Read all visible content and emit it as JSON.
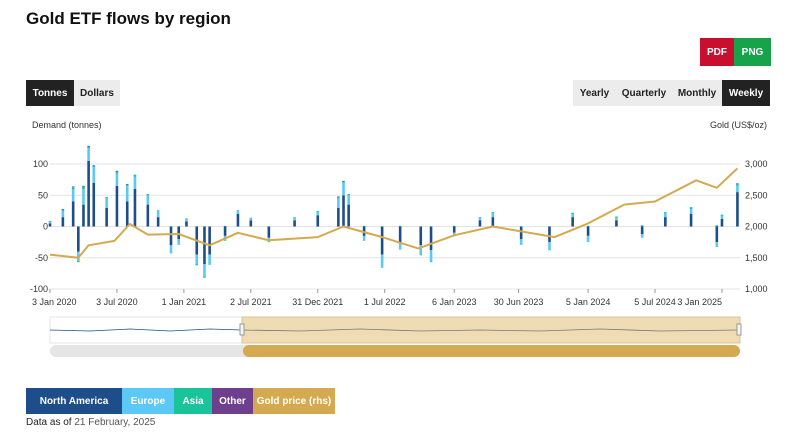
{
  "page": {
    "title": "Gold ETF flows by region"
  },
  "export": {
    "pdf": "PDF",
    "png": "PNG"
  },
  "units_toggle": {
    "tonnes": "Tonnes",
    "dollars": "Dollars",
    "selected": "Tonnes"
  },
  "period_toggle": {
    "yearly": "Yearly",
    "quarterly": "Quarterly",
    "monthly": "Monthly",
    "weekly": "Weekly",
    "selected": "Weekly"
  },
  "legend": {
    "north_america": "North America",
    "europe": "Europe",
    "asia": "Asia",
    "other": "Other",
    "gold_price": "Gold price (rhs)"
  },
  "footer": {
    "prefix": "Data as of",
    "date": "21 February, 2025"
  },
  "colors": {
    "north_america": "#1d4e89",
    "europe": "#5bc8f5",
    "asia": "#19c49a",
    "other": "#6e3f8f",
    "gold_price": "#d4a94f",
    "navigator_fill": "#efdcb4",
    "active": "#222222"
  },
  "chart_data": {
    "type": "bar+line",
    "ylabel": "Demand (tonnes)",
    "y2label": "Gold (US$/oz)",
    "ylim": [
      -100,
      100
    ],
    "y_ticks": [
      100,
      50,
      0,
      -50,
      -100
    ],
    "y2lim": [
      1000,
      3000
    ],
    "y2_ticks": [
      "3,000",
      "2,500",
      "2,000",
      "1,500",
      "1,000"
    ],
    "x_ticks": [
      "3 Jan 2020",
      "3 Jul 2020",
      "1 Jan 2021",
      "2 Jul 2021",
      "31 Dec 2021",
      "1 Jul 2022",
      "6 Jan 2023",
      "30 Jun 2023",
      "5 Jan 2024",
      "5 Jul 2024",
      "3 Jan 2025"
    ],
    "grid": true,
    "weekly_flows": [
      {
        "week": "2020-01-03",
        "north_america": 5,
        "europe": 3,
        "asia": 1,
        "other": 0
      },
      {
        "week": "2020-02-07",
        "north_america": 15,
        "europe": 10,
        "asia": 2,
        "other": 1
      },
      {
        "week": "2020-03-06",
        "north_america": 40,
        "europe": 20,
        "asia": 3,
        "other": 1
      },
      {
        "week": "2020-03-20",
        "north_america": -40,
        "europe": -15,
        "asia": -2,
        "other": 0
      },
      {
        "week": "2020-04-03",
        "north_america": 35,
        "europe": 25,
        "asia": 4,
        "other": 1
      },
      {
        "week": "2020-04-17",
        "north_america": 105,
        "europe": 20,
        "asia": 3,
        "other": 1
      },
      {
        "week": "2020-05-01",
        "north_america": 70,
        "europe": 25,
        "asia": 2,
        "other": 1
      },
      {
        "week": "2020-06-05",
        "north_america": 30,
        "europe": 15,
        "asia": 2,
        "other": 0
      },
      {
        "week": "2020-07-03",
        "north_america": 65,
        "europe": 20,
        "asia": 3,
        "other": 1
      },
      {
        "week": "2020-07-31",
        "north_america": 40,
        "europe": 25,
        "asia": 2,
        "other": 1
      },
      {
        "week": "2020-08-21",
        "north_america": 60,
        "europe": 20,
        "asia": 3,
        "other": 0
      },
      {
        "week": "2020-09-25",
        "north_america": 35,
        "europe": 15,
        "asia": 2,
        "other": 0
      },
      {
        "week": "2020-10-23",
        "north_america": 15,
        "europe": 10,
        "asia": 1,
        "other": 0
      },
      {
        "week": "2020-11-27",
        "north_america": -30,
        "europe": -12,
        "asia": -1,
        "other": 0
      },
      {
        "week": "2020-12-18",
        "north_america": -20,
        "europe": -8,
        "asia": -1,
        "other": 0
      },
      {
        "week": "2021-01-08",
        "north_america": 8,
        "europe": 4,
        "asia": 1,
        "other": 0
      },
      {
        "week": "2021-02-05",
        "north_america": -45,
        "europe": -15,
        "asia": -2,
        "other": 0
      },
      {
        "week": "2021-02-26",
        "north_america": -60,
        "europe": -20,
        "asia": -2,
        "other": 0
      },
      {
        "week": "2021-03-12",
        "north_america": -45,
        "europe": -15,
        "asia": -1,
        "other": 0
      },
      {
        "week": "2021-04-23",
        "north_america": -15,
        "europe": -8,
        "asia": 1,
        "other": 0
      },
      {
        "week": "2021-05-28",
        "north_america": 20,
        "europe": 5,
        "asia": 1,
        "other": 0
      },
      {
        "week": "2021-07-02",
        "north_america": 10,
        "europe": 3,
        "asia": 1,
        "other": 0
      },
      {
        "week": "2021-08-20",
        "north_america": -18,
        "europe": -6,
        "asia": -1,
        "other": 0
      },
      {
        "week": "2021-10-29",
        "north_america": 10,
        "europe": 4,
        "asia": 1,
        "other": 0
      },
      {
        "week": "2021-12-31",
        "north_america": 18,
        "europe": 6,
        "asia": 1,
        "other": 0
      },
      {
        "week": "2022-02-25",
        "north_america": 30,
        "europe": 15,
        "asia": 2,
        "other": 1
      },
      {
        "week": "2022-03-11",
        "north_america": 50,
        "europe": 20,
        "asia": 2,
        "other": 1
      },
      {
        "week": "2022-03-25",
        "north_america": 35,
        "europe": 15,
        "asia": 2,
        "other": 0
      },
      {
        "week": "2022-05-06",
        "north_america": -15,
        "europe": -8,
        "asia": 1,
        "other": 0
      },
      {
        "week": "2022-06-24",
        "north_america": -45,
        "europe": -20,
        "asia": -1,
        "other": 0
      },
      {
        "week": "2022-08-12",
        "north_america": -25,
        "europe": -12,
        "asia": 1,
        "other": 0
      },
      {
        "week": "2022-10-07",
        "north_america": -30,
        "europe": -15,
        "asia": -1,
        "other": 0
      },
      {
        "week": "2022-11-04",
        "north_america": -38,
        "europe": -18,
        "asia": -1,
        "other": 0
      },
      {
        "week": "2023-01-06",
        "north_america": -10,
        "europe": -5,
        "asia": 1,
        "other": 0
      },
      {
        "week": "2023-03-17",
        "north_america": 10,
        "europe": 4,
        "asia": 1,
        "other": 0
      },
      {
        "week": "2023-04-21",
        "north_america": 15,
        "europe": 6,
        "asia": 2,
        "other": 0
      },
      {
        "week": "2023-07-07",
        "north_america": -20,
        "europe": -8,
        "asia": -1,
        "other": 0
      },
      {
        "week": "2023-09-22",
        "north_america": -25,
        "europe": -12,
        "asia": -1,
        "other": 0
      },
      {
        "week": "2023-11-24",
        "north_america": 15,
        "europe": 5,
        "asia": 2,
        "other": 0
      },
      {
        "week": "2024-01-05",
        "north_america": -15,
        "europe": -10,
        "asia": 1,
        "other": 0
      },
      {
        "week": "2024-03-22",
        "north_america": 10,
        "europe": 4,
        "asia": 2,
        "other": 0
      },
      {
        "week": "2024-05-31",
        "north_america": -12,
        "europe": -6,
        "asia": 2,
        "other": 0
      },
      {
        "week": "2024-08-02",
        "north_america": 15,
        "europe": 6,
        "asia": 2,
        "other": 0
      },
      {
        "week": "2024-10-11",
        "north_america": 20,
        "europe": 8,
        "asia": 3,
        "other": 0
      },
      {
        "week": "2024-12-20",
        "north_america": -25,
        "europe": -8,
        "asia": 2,
        "other": 0
      },
      {
        "week": "2025-01-03",
        "north_america": 12,
        "europe": 5,
        "asia": 2,
        "other": 0
      },
      {
        "week": "2025-02-14",
        "north_america": 55,
        "europe": 10,
        "asia": 3,
        "other": 1
      }
    ],
    "gold_price": [
      {
        "date": "2020-01-03",
        "price": 1550
      },
      {
        "date": "2020-03-20",
        "price": 1500
      },
      {
        "date": "2020-04-17",
        "price": 1700
      },
      {
        "date": "2020-06-26",
        "price": 1770
      },
      {
        "date": "2020-08-07",
        "price": 2040
      },
      {
        "date": "2020-09-25",
        "price": 1870
      },
      {
        "date": "2020-12-18",
        "price": 1880
      },
      {
        "date": "2021-03-12",
        "price": 1700
      },
      {
        "date": "2021-05-28",
        "price": 1900
      },
      {
        "date": "2021-08-20",
        "price": 1780
      },
      {
        "date": "2021-12-31",
        "price": 1830
      },
      {
        "date": "2022-03-11",
        "price": 2000
      },
      {
        "date": "2022-06-24",
        "price": 1830
      },
      {
        "date": "2022-09-30",
        "price": 1650
      },
      {
        "date": "2023-01-06",
        "price": 1860
      },
      {
        "date": "2023-04-21",
        "price": 2000
      },
      {
        "date": "2023-10-06",
        "price": 1830
      },
      {
        "date": "2024-01-05",
        "price": 2050
      },
      {
        "date": "2024-04-12",
        "price": 2350
      },
      {
        "date": "2024-07-05",
        "price": 2400
      },
      {
        "date": "2024-10-25",
        "price": 2740
      },
      {
        "date": "2024-12-20",
        "price": 2620
      },
      {
        "date": "2025-02-14",
        "price": 2930
      }
    ]
  }
}
